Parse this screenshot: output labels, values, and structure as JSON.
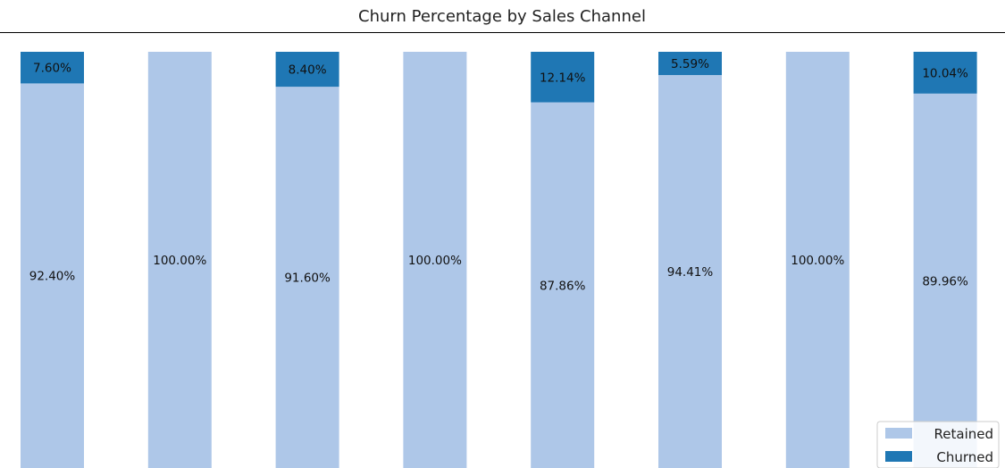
{
  "chart_data": {
    "type": "bar",
    "stacked": true,
    "title": "Churn Percentage by Sales Channel",
    "xlabel": "",
    "ylabel": "",
    "ylim": [
      0,
      100
    ],
    "grid": false,
    "legend_position": "bottom-right",
    "categories": [
      "",
      "",
      "",
      "",
      "",
      "",
      "",
      ""
    ],
    "series": [
      {
        "name": "Retained",
        "color": "#aec7e8",
        "values": [
          92.4,
          100.0,
          91.6,
          100.0,
          87.86,
          94.41,
          100.0,
          89.96
        ],
        "labels": [
          "92.40%",
          "100.00%",
          "91.60%",
          "100.00%",
          "87.86%",
          "94.41%",
          "100.00%",
          "89.96%"
        ]
      },
      {
        "name": "Churned",
        "color": "#1f77b4",
        "values": [
          7.6,
          0,
          8.4,
          0,
          12.14,
          5.59,
          0,
          10.04
        ],
        "labels": [
          "7.60%",
          "",
          "8.40%",
          "",
          "12.14%",
          "5.59%",
          "",
          "10.04%"
        ]
      }
    ]
  }
}
